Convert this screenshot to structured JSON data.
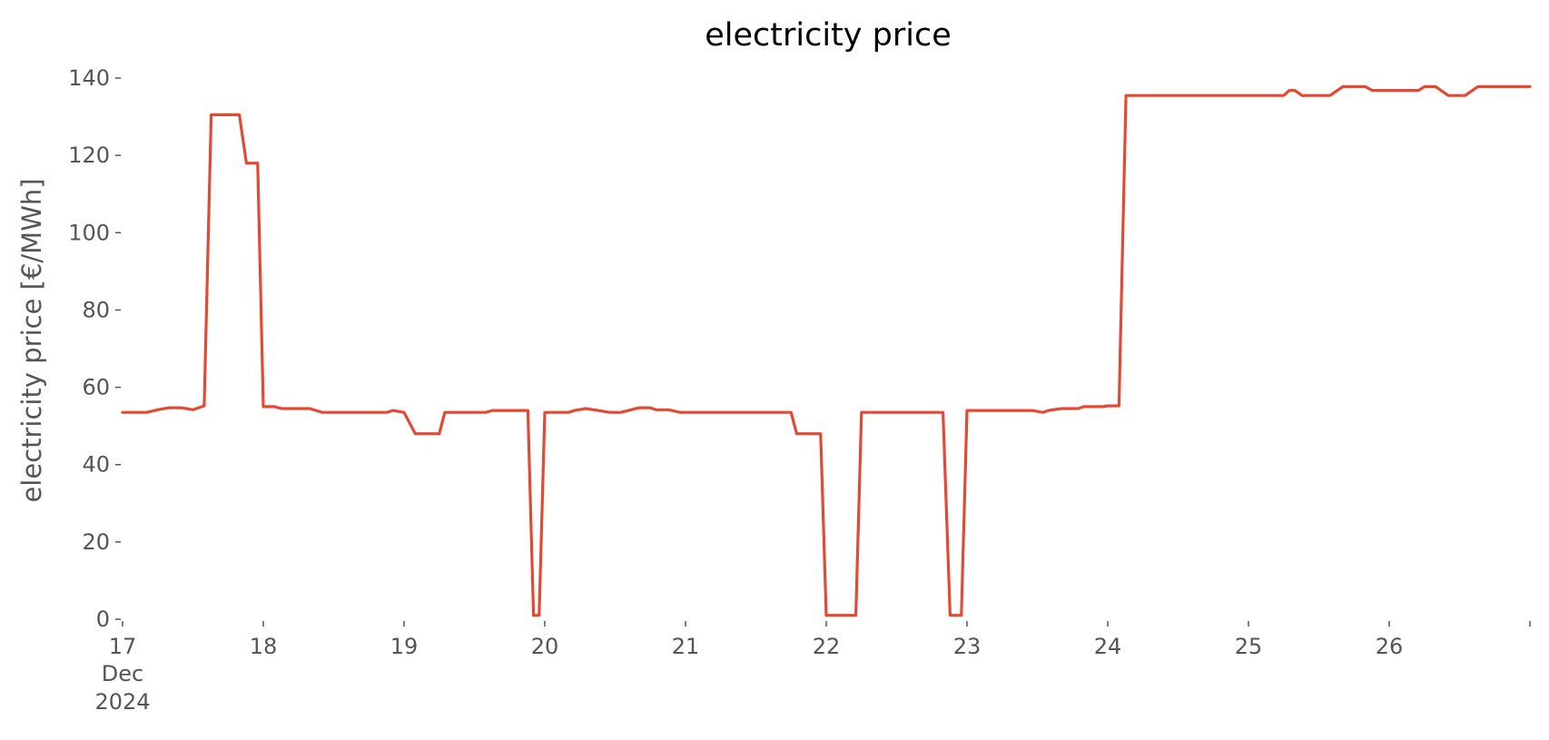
{
  "chart_data": {
    "type": "line",
    "title": "electricity price",
    "xlabel": "",
    "ylabel": "electricity price [€/MWh]",
    "ylim": [
      0,
      140
    ],
    "yticks": [
      0,
      20,
      40,
      60,
      80,
      100,
      120,
      140
    ],
    "xlim_days": [
      17,
      27
    ],
    "xticks": [
      {
        "day": 17,
        "label": "17",
        "sub": [
          "Dec",
          "2024"
        ]
      },
      {
        "day": 18,
        "label": "18"
      },
      {
        "day": 19,
        "label": "19"
      },
      {
        "day": 20,
        "label": "20"
      },
      {
        "day": 21,
        "label": "21"
      },
      {
        "day": 22,
        "label": "22"
      },
      {
        "day": 23,
        "label": "23"
      },
      {
        "day": 24,
        "label": "24"
      },
      {
        "day": 25,
        "label": "25"
      },
      {
        "day": 26,
        "label": "26"
      },
      {
        "day": 27,
        "label": ""
      }
    ],
    "grid": false,
    "line_color": "#E24A33",
    "series": [
      {
        "values": [
          [
            17.0,
            53.5
          ],
          [
            17.17,
            53.5
          ],
          [
            17.25,
            54.2
          ],
          [
            17.33,
            54.7
          ],
          [
            17.42,
            54.7
          ],
          [
            17.5,
            54.2
          ],
          [
            17.58,
            55.2
          ],
          [
            17.63,
            130.5
          ],
          [
            17.83,
            130.5
          ],
          [
            17.88,
            118.0
          ],
          [
            17.96,
            118.0
          ],
          [
            18.0,
            55.0
          ],
          [
            18.08,
            55.0
          ],
          [
            18.13,
            54.5
          ],
          [
            18.33,
            54.5
          ],
          [
            18.42,
            53.5
          ],
          [
            18.88,
            53.5
          ],
          [
            18.92,
            54.0
          ],
          [
            19.0,
            53.5
          ],
          [
            19.08,
            48.0
          ],
          [
            19.25,
            48.0
          ],
          [
            19.29,
            53.5
          ],
          [
            19.58,
            53.5
          ],
          [
            19.63,
            54.0
          ],
          [
            19.88,
            54.0
          ],
          [
            19.92,
            1.0
          ],
          [
            19.96,
            1.0
          ],
          [
            20.0,
            53.5
          ],
          [
            20.17,
            53.5
          ],
          [
            20.21,
            54.0
          ],
          [
            20.29,
            54.5
          ],
          [
            20.38,
            54.0
          ],
          [
            20.46,
            53.5
          ],
          [
            20.54,
            53.5
          ],
          [
            20.67,
            54.7
          ],
          [
            20.75,
            54.7
          ],
          [
            20.79,
            54.2
          ],
          [
            20.88,
            54.2
          ],
          [
            20.96,
            53.5
          ],
          [
            21.75,
            53.5
          ],
          [
            21.79,
            48.0
          ],
          [
            21.96,
            48.0
          ],
          [
            22.0,
            1.0
          ],
          [
            22.21,
            1.0
          ],
          [
            22.25,
            53.5
          ],
          [
            22.83,
            53.5
          ],
          [
            22.88,
            1.0
          ],
          [
            22.96,
            1.0
          ],
          [
            23.0,
            54.0
          ],
          [
            23.46,
            54.0
          ],
          [
            23.54,
            53.5
          ],
          [
            23.58,
            54.0
          ],
          [
            23.67,
            54.5
          ],
          [
            23.79,
            54.5
          ],
          [
            23.83,
            55.0
          ],
          [
            23.96,
            55.0
          ],
          [
            24.0,
            55.2
          ],
          [
            24.08,
            55.2
          ],
          [
            24.13,
            135.5
          ],
          [
            25.25,
            135.5
          ],
          [
            25.29,
            136.8
          ],
          [
            25.33,
            136.8
          ],
          [
            25.38,
            135.5
          ],
          [
            25.58,
            135.5
          ],
          [
            25.67,
            137.8
          ],
          [
            25.83,
            137.8
          ],
          [
            25.88,
            136.8
          ],
          [
            26.21,
            136.8
          ],
          [
            26.25,
            137.8
          ],
          [
            26.33,
            137.8
          ],
          [
            26.42,
            135.5
          ],
          [
            26.54,
            135.5
          ],
          [
            26.63,
            137.8
          ],
          [
            27.0,
            137.8
          ]
        ]
      }
    ]
  }
}
